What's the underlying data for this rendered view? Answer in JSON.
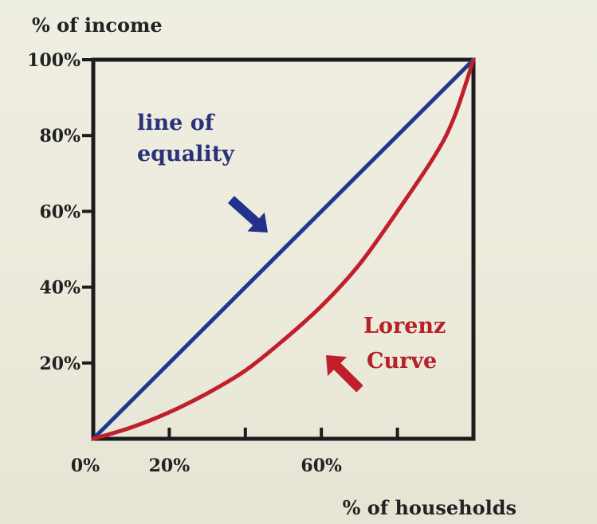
{
  "chart_data": {
    "type": "line",
    "ylabel": "% of income",
    "xlabel": "% of households",
    "xlim": [
      0,
      100
    ],
    "ylim": [
      0,
      100
    ],
    "y_ticks": [
      {
        "value": 100,
        "label": "100%"
      },
      {
        "value": 80,
        "label": "80%"
      },
      {
        "value": 60,
        "label": "60%"
      },
      {
        "value": 40,
        "label": "40%"
      },
      {
        "value": 20,
        "label": "20%"
      }
    ],
    "x_ticks": [
      0,
      20,
      40,
      60,
      80,
      100
    ],
    "x_tick_labels": [
      {
        "value": 0,
        "label": "0%"
      },
      {
        "value": 20,
        "label": "20%"
      },
      {
        "value": 60,
        "label": "60%"
      }
    ],
    "series": [
      {
        "name": "line of equality",
        "color": "#1f3a8c",
        "x": [
          0,
          100
        ],
        "y": [
          0,
          100
        ]
      },
      {
        "name": "Lorenz Curve",
        "color": "#c0202b",
        "x": [
          0,
          10,
          20,
          30,
          40,
          50,
          60,
          70,
          80,
          90,
          95,
          100
        ],
        "y": [
          0,
          3,
          7,
          12,
          18,
          26,
          35,
          46,
          60,
          75,
          85,
          100
        ]
      }
    ],
    "annotations": [
      {
        "lines": [
          "line of",
          "equality"
        ],
        "color": "#27327a",
        "arrow": "points to line of equality"
      },
      {
        "lines": [
          "Lorenz",
          "Curve"
        ],
        "color": "#b52029",
        "arrow": "points to Lorenz Curve"
      }
    ],
    "grid": false,
    "legend": "none"
  }
}
